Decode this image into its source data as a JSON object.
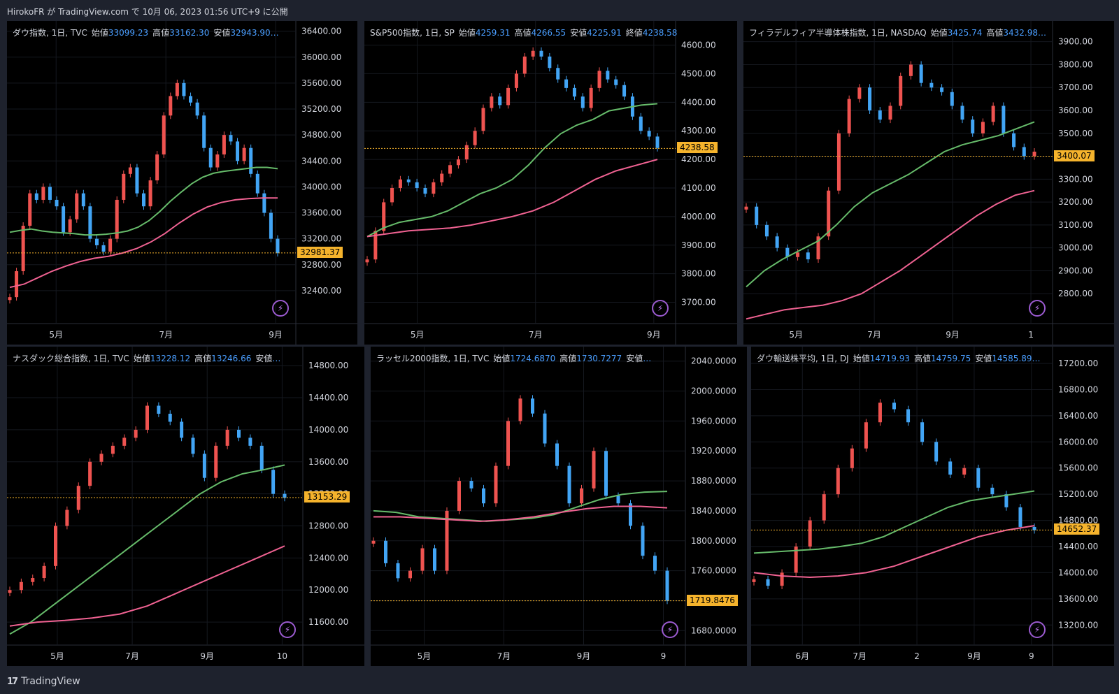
{
  "header": {
    "publish_text": "HirokoFR が TradingView.com で 10月 06, 2023 01:56 UTC+9 に公開"
  },
  "footer": {
    "brand": "TradingView",
    "logo_mark": "17"
  },
  "colors": {
    "up": "#ef5350",
    "down": "#42a5f5",
    "ma_short": "#66bb6a",
    "ma_long": "#f06292",
    "price_line": "#f5b32c"
  },
  "panels": [
    {
      "title": "ダウ指数, 1日, TVC",
      "ohlc": [
        {
          "k": "始値",
          "v": "33099.23"
        },
        {
          "k": "高値",
          "v": "33162.30"
        },
        {
          "k": "安値",
          "v": "32943.90…"
        }
      ],
      "yticks": [
        "36400.00",
        "36000.00",
        "35600.00",
        "35200.00",
        "34800.00",
        "34400.00",
        "34000.00",
        "33600.00",
        "33200.00",
        "32800.00",
        "32400.00"
      ],
      "xticks": [
        "5月",
        "7月",
        "9月"
      ],
      "current": "32981.37",
      "chart_data": {
        "type": "candlestick",
        "ylim": [
          32000,
          36450
        ],
        "close": [
          32300,
          32700,
          33400,
          33900,
          33800,
          34000,
          33800,
          33700,
          33300,
          33500,
          33900,
          33700,
          33200,
          33100,
          33000,
          33200,
          33800,
          34200,
          34300,
          33900,
          33700,
          34100,
          34500,
          35100,
          35400,
          35600,
          35400,
          35300,
          35100,
          34600,
          34300,
          34500,
          34800,
          34700,
          34400,
          34600,
          34200,
          33900,
          33600,
          33200,
          32980
        ],
        "ma50": [
          33300,
          33330,
          33350,
          33320,
          33300,
          33290,
          33280,
          33260,
          33260,
          33270,
          33290,
          33320,
          33380,
          33480,
          33620,
          33780,
          33920,
          34050,
          34150,
          34210,
          34240,
          34260,
          34280,
          34300,
          34300,
          34280
        ],
        "ma200": [
          32450,
          32500,
          32600,
          32700,
          32780,
          32850,
          32900,
          32930,
          32980,
          33050,
          33150,
          33280,
          33440,
          33580,
          33690,
          33760,
          33800,
          33820,
          33830,
          33830
        ]
      }
    },
    {
      "title": "S&P500指数, 1日, SP",
      "ohlc": [
        {
          "k": "始値",
          "v": "4259.31"
        },
        {
          "k": "高値",
          "v": "4266.55"
        },
        {
          "k": "安値",
          "v": "4225.91"
        },
        {
          "k": "終値",
          "v": "4238.58"
        }
      ],
      "yticks": [
        "4600.00",
        "4500.00",
        "4400.00",
        "4300.00",
        "4200.00",
        "4100.00",
        "4000.00",
        "3900.00",
        "3800.00",
        "3700.00"
      ],
      "xticks": [
        "5月",
        "7月",
        "9月"
      ],
      "current": "4238.58",
      "chart_data": {
        "type": "candlestick",
        "ylim": [
          3650,
          4660
        ],
        "close": [
          3850,
          3950,
          4050,
          4100,
          4130,
          4120,
          4100,
          4080,
          4120,
          4150,
          4180,
          4200,
          4250,
          4300,
          4380,
          4420,
          4390,
          4450,
          4500,
          4560,
          4580,
          4560,
          4520,
          4480,
          4450,
          4420,
          4380,
          4450,
          4510,
          4480,
          4460,
          4420,
          4350,
          4300,
          4280,
          4240
        ],
        "ma50": [
          3930,
          3960,
          3980,
          3990,
          4000,
          4020,
          4050,
          4080,
          4100,
          4130,
          4180,
          4240,
          4290,
          4320,
          4340,
          4370,
          4380,
          4390,
          4395
        ],
        "ma200": [
          3930,
          3940,
          3950,
          3955,
          3960,
          3970,
          3985,
          4000,
          4020,
          4050,
          4090,
          4130,
          4160,
          4180,
          4200
        ]
      }
    },
    {
      "title": "フィラデルフィア半導体株指数, 1日, NASDAQ",
      "ohlc": [
        {
          "k": "始値",
          "v": "3425.74"
        },
        {
          "k": "高値",
          "v": "3432.98…"
        }
      ],
      "yticks": [
        "3900.00",
        "3800.00",
        "3700.00",
        "3600.00",
        "3500.00",
        "3400.00",
        "3300.00",
        "3200.00",
        "3100.00",
        "3000.00",
        "2900.00",
        "2800.00"
      ],
      "xticks": [
        "5月",
        "7月",
        "9月",
        "1"
      ],
      "current": "3400.07",
      "chart_data": {
        "type": "candlestick",
        "ylim": [
          2700,
          3960
        ],
        "close": [
          3180,
          3100,
          3050,
          3000,
          2960,
          2980,
          2950,
          3050,
          3250,
          3500,
          3650,
          3700,
          3600,
          3560,
          3620,
          3750,
          3800,
          3720,
          3700,
          3680,
          3620,
          3560,
          3500,
          3550,
          3620,
          3500,
          3440,
          3400,
          3420
        ],
        "ma50": [
          2830,
          2900,
          2950,
          2990,
          3030,
          3100,
          3180,
          3240,
          3280,
          3320,
          3370,
          3420,
          3450,
          3470,
          3490,
          3520,
          3550
        ],
        "ma200": [
          2690,
          2710,
          2730,
          2740,
          2750,
          2770,
          2800,
          2850,
          2900,
          2960,
          3020,
          3080,
          3140,
          3190,
          3230,
          3250
        ]
      }
    },
    {
      "title": "ナスダック総合指数, 1日, TVC",
      "ohlc": [
        {
          "k": "始値",
          "v": "13228.12"
        },
        {
          "k": "高値",
          "v": "13246.66"
        },
        {
          "k": "安値",
          "v": "…"
        }
      ],
      "yticks": [
        "14800.00",
        "14400.00",
        "14000.00",
        "13600.00",
        "13200.00",
        "12800.00",
        "12400.00",
        "12000.00",
        "11600.00"
      ],
      "xticks": [
        "5月",
        "7月",
        "9月",
        "10"
      ],
      "current": "13153.29",
      "chart_data": {
        "type": "candlestick",
        "ylim": [
          11400,
          14950
        ],
        "close": [
          12000,
          12100,
          12150,
          12300,
          12800,
          13000,
          13300,
          13600,
          13700,
          13800,
          13900,
          14000,
          14300,
          14200,
          14100,
          13900,
          13700,
          13400,
          13800,
          14000,
          13900,
          13800,
          13500,
          13200,
          13150
        ],
        "ma50": [
          11450,
          11600,
          11800,
          12000,
          12200,
          12400,
          12600,
          12800,
          13000,
          13200,
          13350,
          13450,
          13500,
          13560
        ],
        "ma200": [
          11550,
          11600,
          11620,
          11650,
          11700,
          11800,
          11950,
          12100,
          12250,
          12400,
          12550
        ]
      }
    },
    {
      "title": "ラッセル2000指数, 1日, TVC",
      "ohlc": [
        {
          "k": "始値",
          "v": "1724.6870"
        },
        {
          "k": "高値",
          "v": "1730.7277"
        },
        {
          "k": "安値",
          "v": "…"
        }
      ],
      "yticks": [
        "2040.0000",
        "2000.0000",
        "1960.0000",
        "1920.0000",
        "1880.0000",
        "1840.0000",
        "1800.0000",
        "1760.0000",
        "1720.0000",
        "1680.0000"
      ],
      "xticks": [
        "5月",
        "7月",
        "9月",
        "9"
      ],
      "current": "1719.8476",
      "chart_data": {
        "type": "candlestick",
        "ylim": [
          1670,
          2050
        ],
        "close": [
          1800,
          1770,
          1750,
          1760,
          1790,
          1760,
          1840,
          1880,
          1870,
          1850,
          1900,
          1960,
          1990,
          1970,
          1930,
          1900,
          1850,
          1870,
          1920,
          1860,
          1850,
          1820,
          1780,
          1760,
          1720
        ],
        "ma50": [
          1840,
          1838,
          1832,
          1830,
          1828,
          1826,
          1828,
          1830,
          1835,
          1845,
          1855,
          1862,
          1865,
          1866
        ],
        "ma200": [
          1832,
          1832,
          1830,
          1828,
          1826,
          1828,
          1832,
          1838,
          1843,
          1846,
          1846,
          1844
        ]
      }
    },
    {
      "title": "ダウ輸送株平均, 1日, DJ",
      "ohlc": [
        {
          "k": "始値",
          "v": "14719.93"
        },
        {
          "k": "高値",
          "v": "14759.75"
        },
        {
          "k": "安値",
          "v": "14585.89…"
        }
      ],
      "yticks": [
        "17200.00",
        "16800.00",
        "16400.00",
        "16000.00",
        "15600.00",
        "15200.00",
        "14800.00",
        "14400.00",
        "14000.00",
        "13600.00",
        "13200.00"
      ],
      "xticks": [
        "6月",
        "7月",
        "2",
        "9月",
        "9"
      ],
      "current": "14652.37",
      "chart_data": {
        "type": "candlestick",
        "ylim": [
          13000,
          17350
        ],
        "close": [
          13900,
          13800,
          14000,
          14400,
          14800,
          15200,
          15600,
          15900,
          16300,
          16600,
          16500,
          16300,
          16000,
          15700,
          15500,
          15600,
          15300,
          15200,
          15000,
          14700,
          14650
        ],
        "ma50": [
          14300,
          14320,
          14340,
          14360,
          14400,
          14450,
          14550,
          14700,
          14850,
          15000,
          15100,
          15150,
          15200,
          15250
        ],
        "ma200": [
          14000,
          13950,
          13930,
          13950,
          14000,
          14100,
          14250,
          14400,
          14550,
          14650,
          14720
        ]
      }
    }
  ]
}
